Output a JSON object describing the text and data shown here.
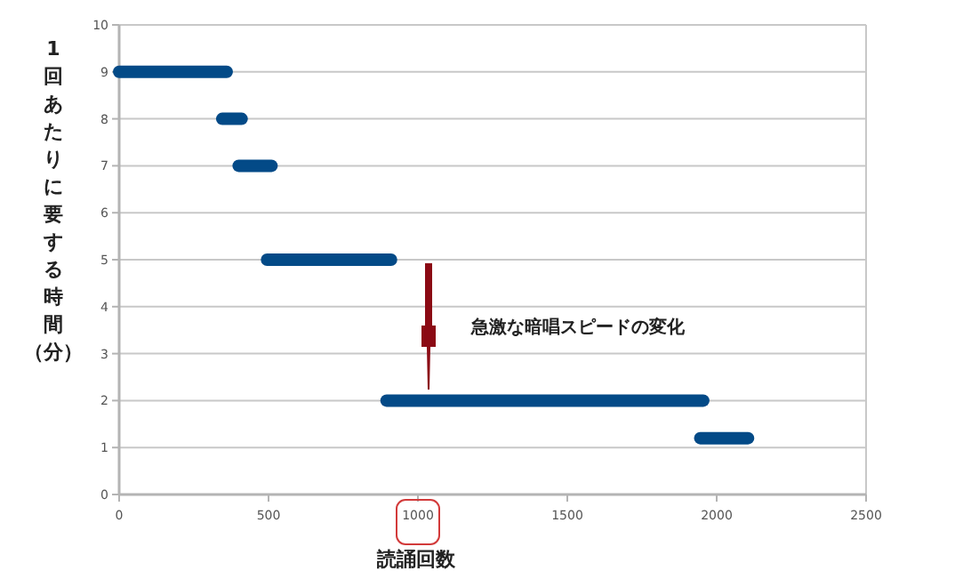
{
  "chart_data": {
    "type": "line",
    "xlabel": "読誦回数",
    "ylabel": "1回あたりに要する時間（分）",
    "xlim": [
      0,
      2500
    ],
    "xticks": [
      0,
      500,
      1000,
      1500,
      2000,
      2500
    ],
    "ylim": [
      0,
      10
    ],
    "yticks": [
      0,
      1,
      2,
      3,
      4,
      5,
      6,
      7,
      8,
      9,
      10
    ],
    "grid": "y",
    "marker": "none",
    "line_style": "solid",
    "series": [
      {
        "x": [
          0,
          360
        ],
        "values": [
          9,
          9
        ],
        "color": "#034a87"
      },
      {
        "x": [
          345,
          410
        ],
        "values": [
          8,
          8
        ],
        "color": "#034a87"
      },
      {
        "x": [
          400,
          510
        ],
        "values": [
          7,
          7
        ],
        "color": "#034a87"
      },
      {
        "x": [
          495,
          910
        ],
        "values": [
          5,
          5
        ],
        "color": "#034a87"
      },
      {
        "x": [
          895,
          1955
        ],
        "values": [
          2,
          2
        ],
        "color": "#034a87"
      },
      {
        "x": [
          1945,
          2105
        ],
        "values": [
          1.2,
          1.2
        ],
        "color": "#034a87"
      }
    ],
    "annotations": [
      "急激な暗唱スピードの変化"
    ]
  }
}
